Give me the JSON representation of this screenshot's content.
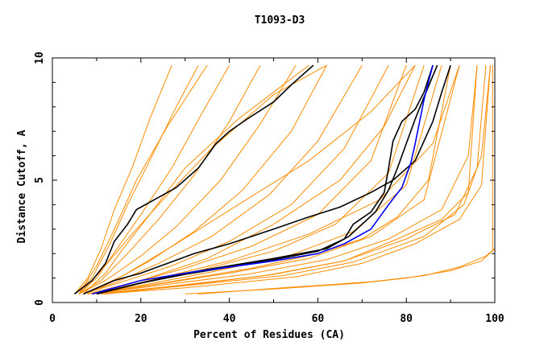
{
  "chart_data": {
    "type": "line",
    "title": "T1093-D3",
    "xlabel": "Percent of Residues (CA)",
    "ylabel": "Distance Cutoff, A",
    "xlim": [
      0,
      100
    ],
    "ylim": [
      0,
      10
    ],
    "xticks": [
      "0",
      "20",
      "40",
      "60",
      "80",
      "100"
    ],
    "yticks": [
      "0",
      "5",
      "10"
    ],
    "grid": false,
    "colors": {
      "other_models": "#ff8c00",
      "highlight": "#000000",
      "best": "#0000ff"
    },
    "orange_series": [
      [
        5,
        0.35,
        8,
        1,
        11,
        2.2,
        14,
        3.8,
        18,
        5.5,
        22,
        7.5,
        27,
        9.7
      ],
      [
        5,
        0.35,
        9,
        1,
        13,
        2.4,
        17,
        4,
        22,
        5.8,
        28,
        8,
        33,
        9.7
      ],
      [
        6,
        0.35,
        10,
        1,
        15,
        2.3,
        20,
        3.6,
        27,
        5.5,
        34,
        7.8,
        40,
        9.7
      ],
      [
        6,
        0.35,
        11,
        0.9,
        17,
        2,
        24,
        3.4,
        32,
        5.2,
        40,
        7.4,
        47,
        9.7
      ],
      [
        6,
        0.35,
        12,
        0.9,
        20,
        1.9,
        28,
        3.1,
        38,
        5,
        47,
        7.3,
        55,
        9.7
      ],
      [
        7,
        0.35,
        13,
        0.8,
        22,
        1.7,
        32,
        2.9,
        43,
        4.6,
        54,
        7,
        62,
        9.7
      ],
      [
        7,
        0.35,
        14,
        0.8,
        24,
        1.6,
        36,
        2.7,
        49,
        4.4,
        60,
        6.6,
        70,
        9.7
      ],
      [
        7,
        0.35,
        15,
        0.8,
        27,
        1.5,
        40,
        2.5,
        54,
        4,
        66,
        6.3,
        76,
        9.7
      ],
      [
        8,
        0.35,
        16,
        0.7,
        30,
        1.4,
        45,
        2.3,
        60,
        3.6,
        72,
        5.8,
        80,
        9.7
      ],
      [
        8,
        0.35,
        18,
        0.7,
        33,
        1.3,
        50,
        2.1,
        64,
        3.2,
        76,
        5.3,
        84,
        9.7
      ],
      [
        8,
        0.35,
        20,
        0.7,
        36,
        1.25,
        54,
        1.95,
        68,
        2.9,
        80,
        4.8,
        88,
        9.7
      ],
      [
        9,
        0.35,
        22,
        0.7,
        40,
        1.2,
        58,
        1.8,
        72,
        2.7,
        84,
        4.2,
        92,
        9.7
      ],
      [
        9,
        0.35,
        24,
        0.7,
        44,
        1.15,
        62,
        1.75,
        76,
        2.6,
        88,
        3.8,
        94,
        6,
        96,
        9.7
      ],
      [
        10,
        0.35,
        26,
        0.65,
        48,
        1.1,
        66,
        1.7,
        80,
        2.6,
        91,
        3.6,
        96,
        5.5,
        98,
        9.7
      ],
      [
        10,
        0.35,
        28,
        0.65,
        52,
        1.1,
        68,
        1.65,
        84,
        2.7,
        93,
        4,
        97,
        6,
        99,
        9.7
      ],
      [
        11,
        0.35,
        30,
        0.6,
        55,
        1.05,
        70,
        1.6,
        82,
        2.4,
        92,
        3.4,
        97,
        4.8,
        99,
        9.7
      ],
      [
        9,
        0.35,
        25,
        0.8,
        45,
        1.4,
        60,
        2,
        70,
        2.6,
        78,
        3.5,
        85,
        5,
        90,
        9.7
      ],
      [
        7,
        0.35,
        12,
        1.2,
        16,
        2.2,
        22,
        3.6,
        30,
        5.5,
        42,
        7.5,
        58,
        9.7
      ],
      [
        6,
        0.35,
        10,
        1.5,
        14,
        3,
        19,
        5,
        26,
        7.2,
        35,
        9.7
      ],
      [
        8,
        0.35,
        20,
        0.9,
        35,
        1.8,
        50,
        3.2,
        65,
        5,
        75,
        7.2,
        82,
        9.7
      ],
      [
        12,
        0.35,
        30,
        0.7,
        50,
        1.15,
        66,
        1.7,
        78,
        2.6,
        88,
        3.4,
        94,
        4.5,
        96,
        9.7
      ],
      [
        6,
        0.35,
        11,
        1.3,
        18,
        2.8,
        26,
        4.4,
        36,
        6.3,
        50,
        8.5,
        62,
        9.7
      ],
      [
        7,
        0.35,
        16,
        1.1,
        28,
        2.4,
        42,
        4,
        58,
        5.8,
        72,
        7.8,
        82,
        9.7
      ],
      [
        9,
        0.35,
        22,
        0.9,
        40,
        1.7,
        58,
        2.8,
        74,
        4.2,
        86,
        6.5,
        92,
        9.7
      ],
      [
        30,
        0.35,
        50,
        0.55,
        70,
        0.8,
        80,
        1,
        90,
        1.3,
        97,
        1.7,
        100,
        2.2
      ],
      [
        33,
        0.35,
        52,
        0.6,
        72,
        0.85,
        84,
        1.1,
        92,
        1.45,
        98,
        1.9,
        100,
        2.2
      ],
      [
        99.5,
        2.1,
        99.5,
        9.7
      ]
    ],
    "black_series": [
      [
        5,
        0.35,
        9,
        0.9,
        12,
        1.6,
        14,
        2.5,
        17,
        3.2,
        19,
        3.8,
        24,
        4.3,
        28,
        4.7,
        33,
        5.5,
        37,
        6.5,
        40,
        7,
        44,
        7.5,
        50,
        8.2,
        54,
        8.9,
        59,
        9.7
      ],
      [
        7,
        0.35,
        14,
        0.9,
        20,
        1.2,
        26,
        1.6,
        32,
        2,
        40,
        2.4,
        50,
        3,
        58,
        3.5,
        65,
        3.9,
        72,
        4.5,
        77,
        5,
        82,
        5.8,
        86,
        7.4,
        88,
        8.6,
        90,
        9.7
      ],
      [
        10,
        0.35,
        20,
        0.8,
        30,
        1.2,
        40,
        1.5,
        50,
        1.8,
        62,
        2.2,
        67,
        2.7,
        70,
        3.2,
        73,
        3.7,
        76,
        4.6,
        78,
        5.5,
        80,
        6.5,
        82,
        7.5,
        84,
        8.4,
        87,
        9.7
      ],
      [
        11,
        0.4,
        20,
        0.8,
        30,
        1.15,
        40,
        1.45,
        50,
        1.75,
        60,
        2.1,
        66,
        2.6,
        68,
        3.2,
        72,
        3.7,
        75,
        4.5,
        76,
        5.5,
        77,
        6.6,
        79,
        7.4,
        82,
        7.9,
        84,
        8.6,
        86,
        9.7
      ]
    ],
    "blue_series": [
      [
        9,
        0.35,
        12,
        0.5,
        20,
        0.9,
        30,
        1.2,
        40,
        1.45,
        50,
        1.7,
        60,
        2,
        66,
        2.4,
        72,
        3,
        76,
        4,
        79,
        4.7,
        81,
        5.7,
        82,
        6.5,
        83,
        7.4,
        84,
        8.3,
        85,
        9,
        86,
        9.7
      ]
    ]
  }
}
